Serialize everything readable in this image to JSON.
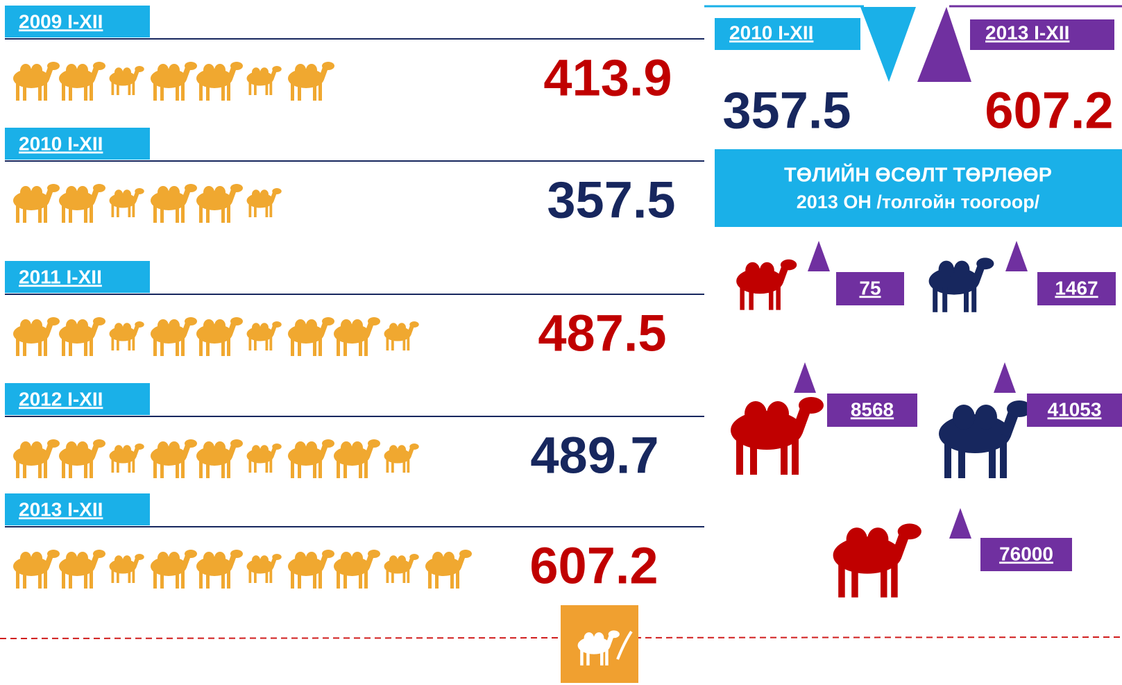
{
  "rows": [
    {
      "label": "2009  I-XII",
      "value": 413.9
    },
    {
      "label": "2010 I-XII",
      "value": 357.5
    },
    {
      "label": "2011 I-XII",
      "value": 487.5
    },
    {
      "label": "2012 I-XII",
      "value": 489.7
    },
    {
      "label": "2013 I-XII",
      "value": 607.2
    }
  ],
  "comparison": {
    "from": {
      "label": "2010 I-XII",
      "value": 357.5
    },
    "to": {
      "label": "2013  I-XII",
      "value": 607.2
    }
  },
  "banner": {
    "line1": "ТӨЛИЙН  ӨСӨЛТ ТӨРЛӨӨР",
    "line2": "2013 ОН /толгойн тоогоор/"
  },
  "growth": [
    75,
    1467,
    8568,
    41053,
    76000
  ]
}
